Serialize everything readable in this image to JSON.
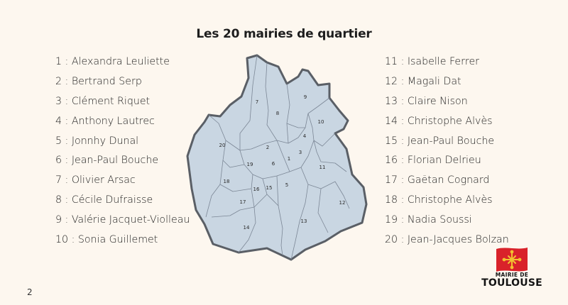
{
  "title": "Les 20 mairies de quartier",
  "page_number": "2",
  "mayors_left": [
    "1 : Alexandra Leuliette",
    "2 : Bertrand Serp",
    "3 : Clément Riquet",
    "4 : Anthony Lautrec",
    "5 : Jonnhy Dunal",
    "6 : Jean-Paul Bouche",
    "7 : Olivier Arsac",
    "8 : Cécile Dufraisse",
    "9 : Valérie Jacquet-Violleau",
    "10 : Sonia Guillemet"
  ],
  "mayors_right": [
    "11 : Isabelle Ferrer",
    "12 : Magali Dat",
    "13 : Claire Nison",
    "14 : Christophe Alvès",
    "15 : Jean-Paul Bouche",
    "16 : Florian Delrieu",
    "17 : Gaëtan Cognard",
    "18 : Christophe Alvès",
    "19 : Nadia Soussi",
    "20 : Jean-Jacques Bolzan"
  ],
  "map": {
    "district_numbers": [
      "1",
      "2",
      "3",
      "4",
      "5",
      "6",
      "7",
      "8",
      "9",
      "10",
      "11",
      "12",
      "13",
      "14",
      "15",
      "16",
      "17",
      "18",
      "19",
      "20"
    ],
    "fill_color": "#c9d6e2",
    "border_color": "#5a5f66"
  },
  "logo": {
    "line1": "MAIRIE DE",
    "line2": "TOULOUSE",
    "flag_color": "#d9222a",
    "cross_color": "#f2c230"
  }
}
